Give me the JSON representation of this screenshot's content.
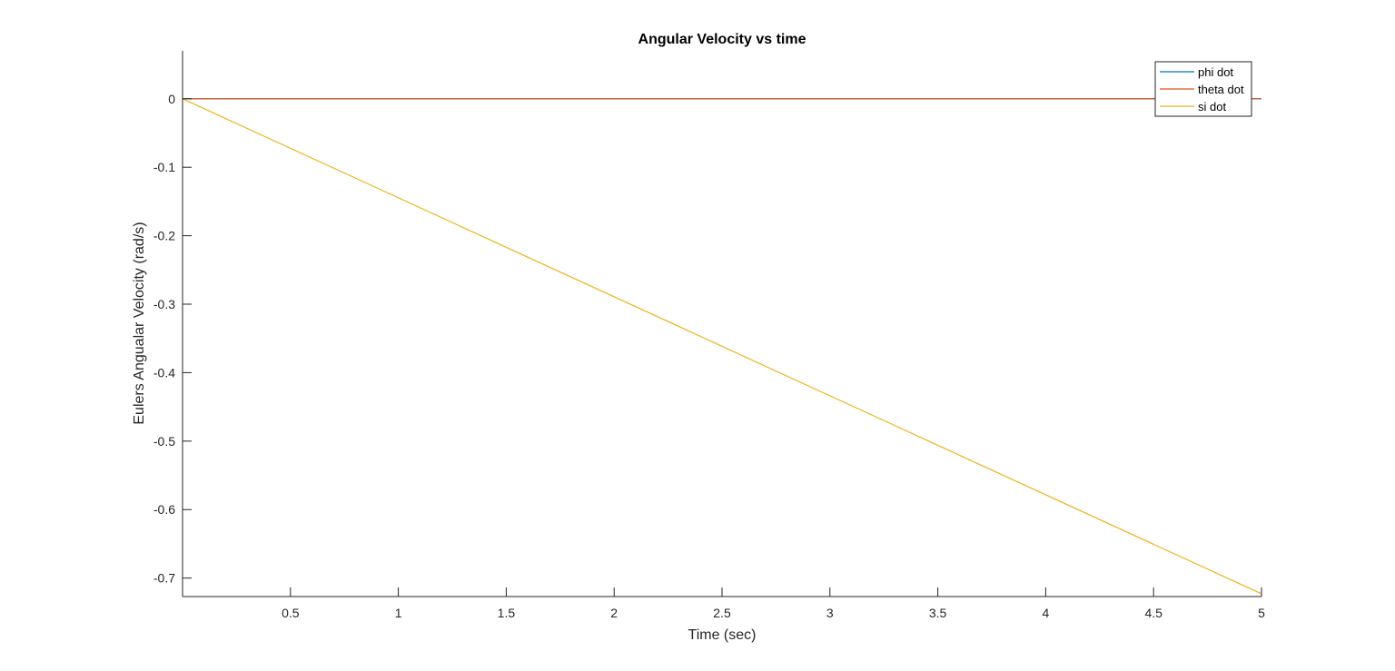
{
  "chart_data": {
    "type": "line",
    "title": "Angular Velocity vs time",
    "xlabel": "Time (sec)",
    "ylabel": "Eulers Angualar Velocity (rad/s)",
    "xlim": [
      0,
      5
    ],
    "ylim": [
      -0.727,
      0.07
    ],
    "xticks": [
      0.5,
      1,
      1.5,
      2,
      2.5,
      3,
      3.5,
      4,
      4.5,
      5
    ],
    "xtick_labels": [
      "0.5",
      "1",
      "1.5",
      "2",
      "2.5",
      "3",
      "3.5",
      "4",
      "4.5",
      "5"
    ],
    "yticks": [
      0,
      -0.1,
      -0.2,
      -0.3,
      -0.4,
      -0.5,
      -0.6,
      -0.7
    ],
    "ytick_labels": [
      "0",
      "-0.1",
      "-0.2",
      "-0.3",
      "-0.4",
      "-0.5",
      "-0.6",
      "-0.7"
    ],
    "grid": false,
    "legend_position": "top-right",
    "series": [
      {
        "name": "phi dot",
        "color": "#0072BD",
        "x": [
          0,
          5
        ],
        "y": [
          0,
          0
        ]
      },
      {
        "name": "theta dot",
        "color": "#D95319",
        "x": [
          0,
          5
        ],
        "y": [
          0,
          0
        ]
      },
      {
        "name": "si dot",
        "color": "#EDB120",
        "x": [
          0,
          5
        ],
        "y": [
          0,
          -0.723
        ]
      }
    ]
  }
}
